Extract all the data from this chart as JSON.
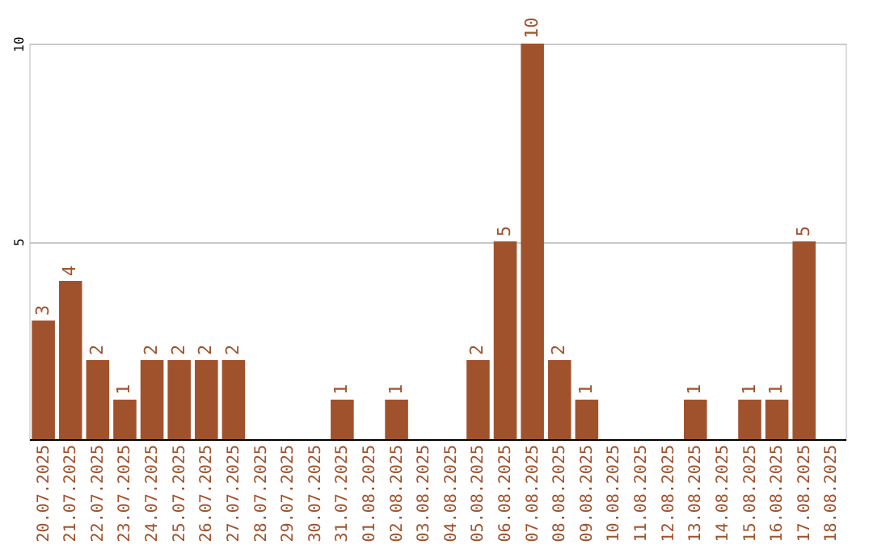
{
  "chart_data": {
    "type": "bar",
    "categories": [
      "20.07.2025",
      "21.07.2025",
      "22.07.2025",
      "23.07.2025",
      "24.07.2025",
      "25.07.2025",
      "26.07.2025",
      "27.07.2025",
      "28.07.2025",
      "29.07.2025",
      "30.07.2025",
      "31.07.2025",
      "01.08.2025",
      "02.08.2025",
      "03.08.2025",
      "04.08.2025",
      "05.08.2025",
      "06.08.2025",
      "07.08.2025",
      "08.08.2025",
      "09.08.2025",
      "10.08.2025",
      "11.08.2025",
      "12.08.2025",
      "13.08.2025",
      "14.08.2025",
      "15.08.2025",
      "16.08.2025",
      "17.08.2025",
      "18.08.2025"
    ],
    "values": [
      3,
      4,
      2,
      1,
      2,
      2,
      2,
      2,
      null,
      null,
      null,
      1,
      null,
      1,
      null,
      null,
      2,
      5,
      10,
      2,
      1,
      null,
      null,
      null,
      1,
      null,
      1,
      1,
      5,
      null
    ],
    "color": "#a0522d",
    "ylim": [
      0,
      10
    ],
    "yticks": [
      5,
      10
    ],
    "grid": "y",
    "data_labels": true
  }
}
